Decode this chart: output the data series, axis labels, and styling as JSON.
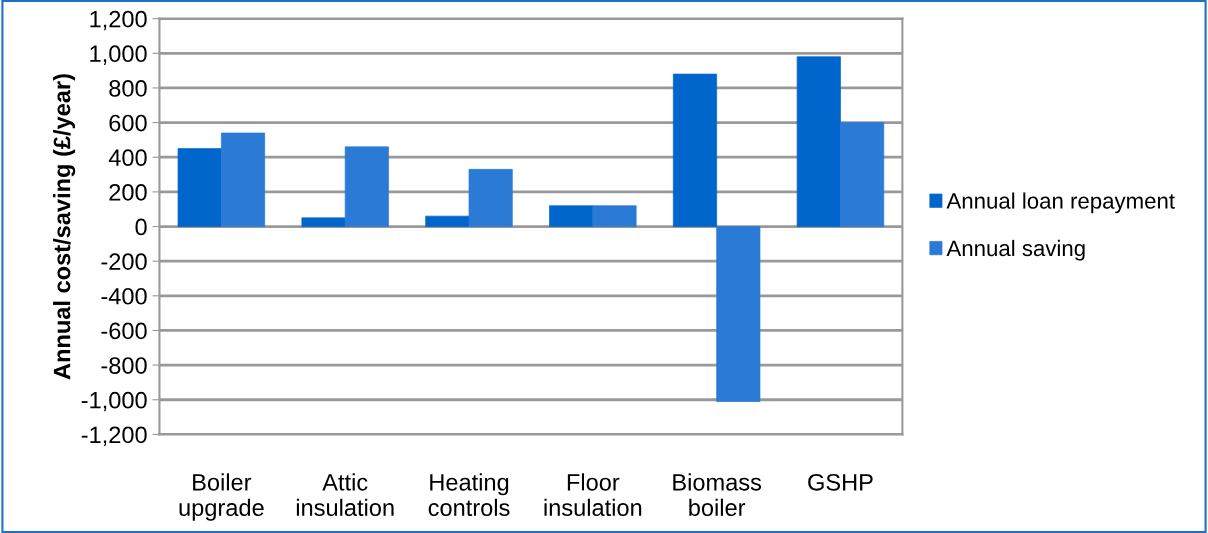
{
  "chart_data": {
    "type": "bar",
    "ylabel": "Annual cost/saving (£/year)",
    "categories": [
      "Boiler\nupgrade",
      "Attic\ninsulation",
      "Heating\ncontrols",
      "Floor\ninsulation",
      "Biomass\nboiler",
      "GSHP"
    ],
    "series": [
      {
        "name": "Annual loan repayment",
        "color": "#0066cc",
        "values": [
          450,
          50,
          60,
          120,
          880,
          980
        ]
      },
      {
        "name": "Annual saving",
        "color": "#2a7ad6",
        "values": [
          540,
          460,
          330,
          120,
          -1010,
          600
        ]
      }
    ],
    "ylim": [
      -1200,
      1200
    ],
    "yticks": [
      {
        "value": -1200,
        "label": "-1,200"
      },
      {
        "value": -1000,
        "label": "-1,000"
      },
      -800,
      -600,
      -400,
      -200,
      0,
      200,
      400,
      600,
      800,
      {
        "value": 1000,
        "label": "1,000"
      },
      {
        "value": 1200,
        "label": "1,200"
      }
    ],
    "grid": "y",
    "legend": "right"
  }
}
